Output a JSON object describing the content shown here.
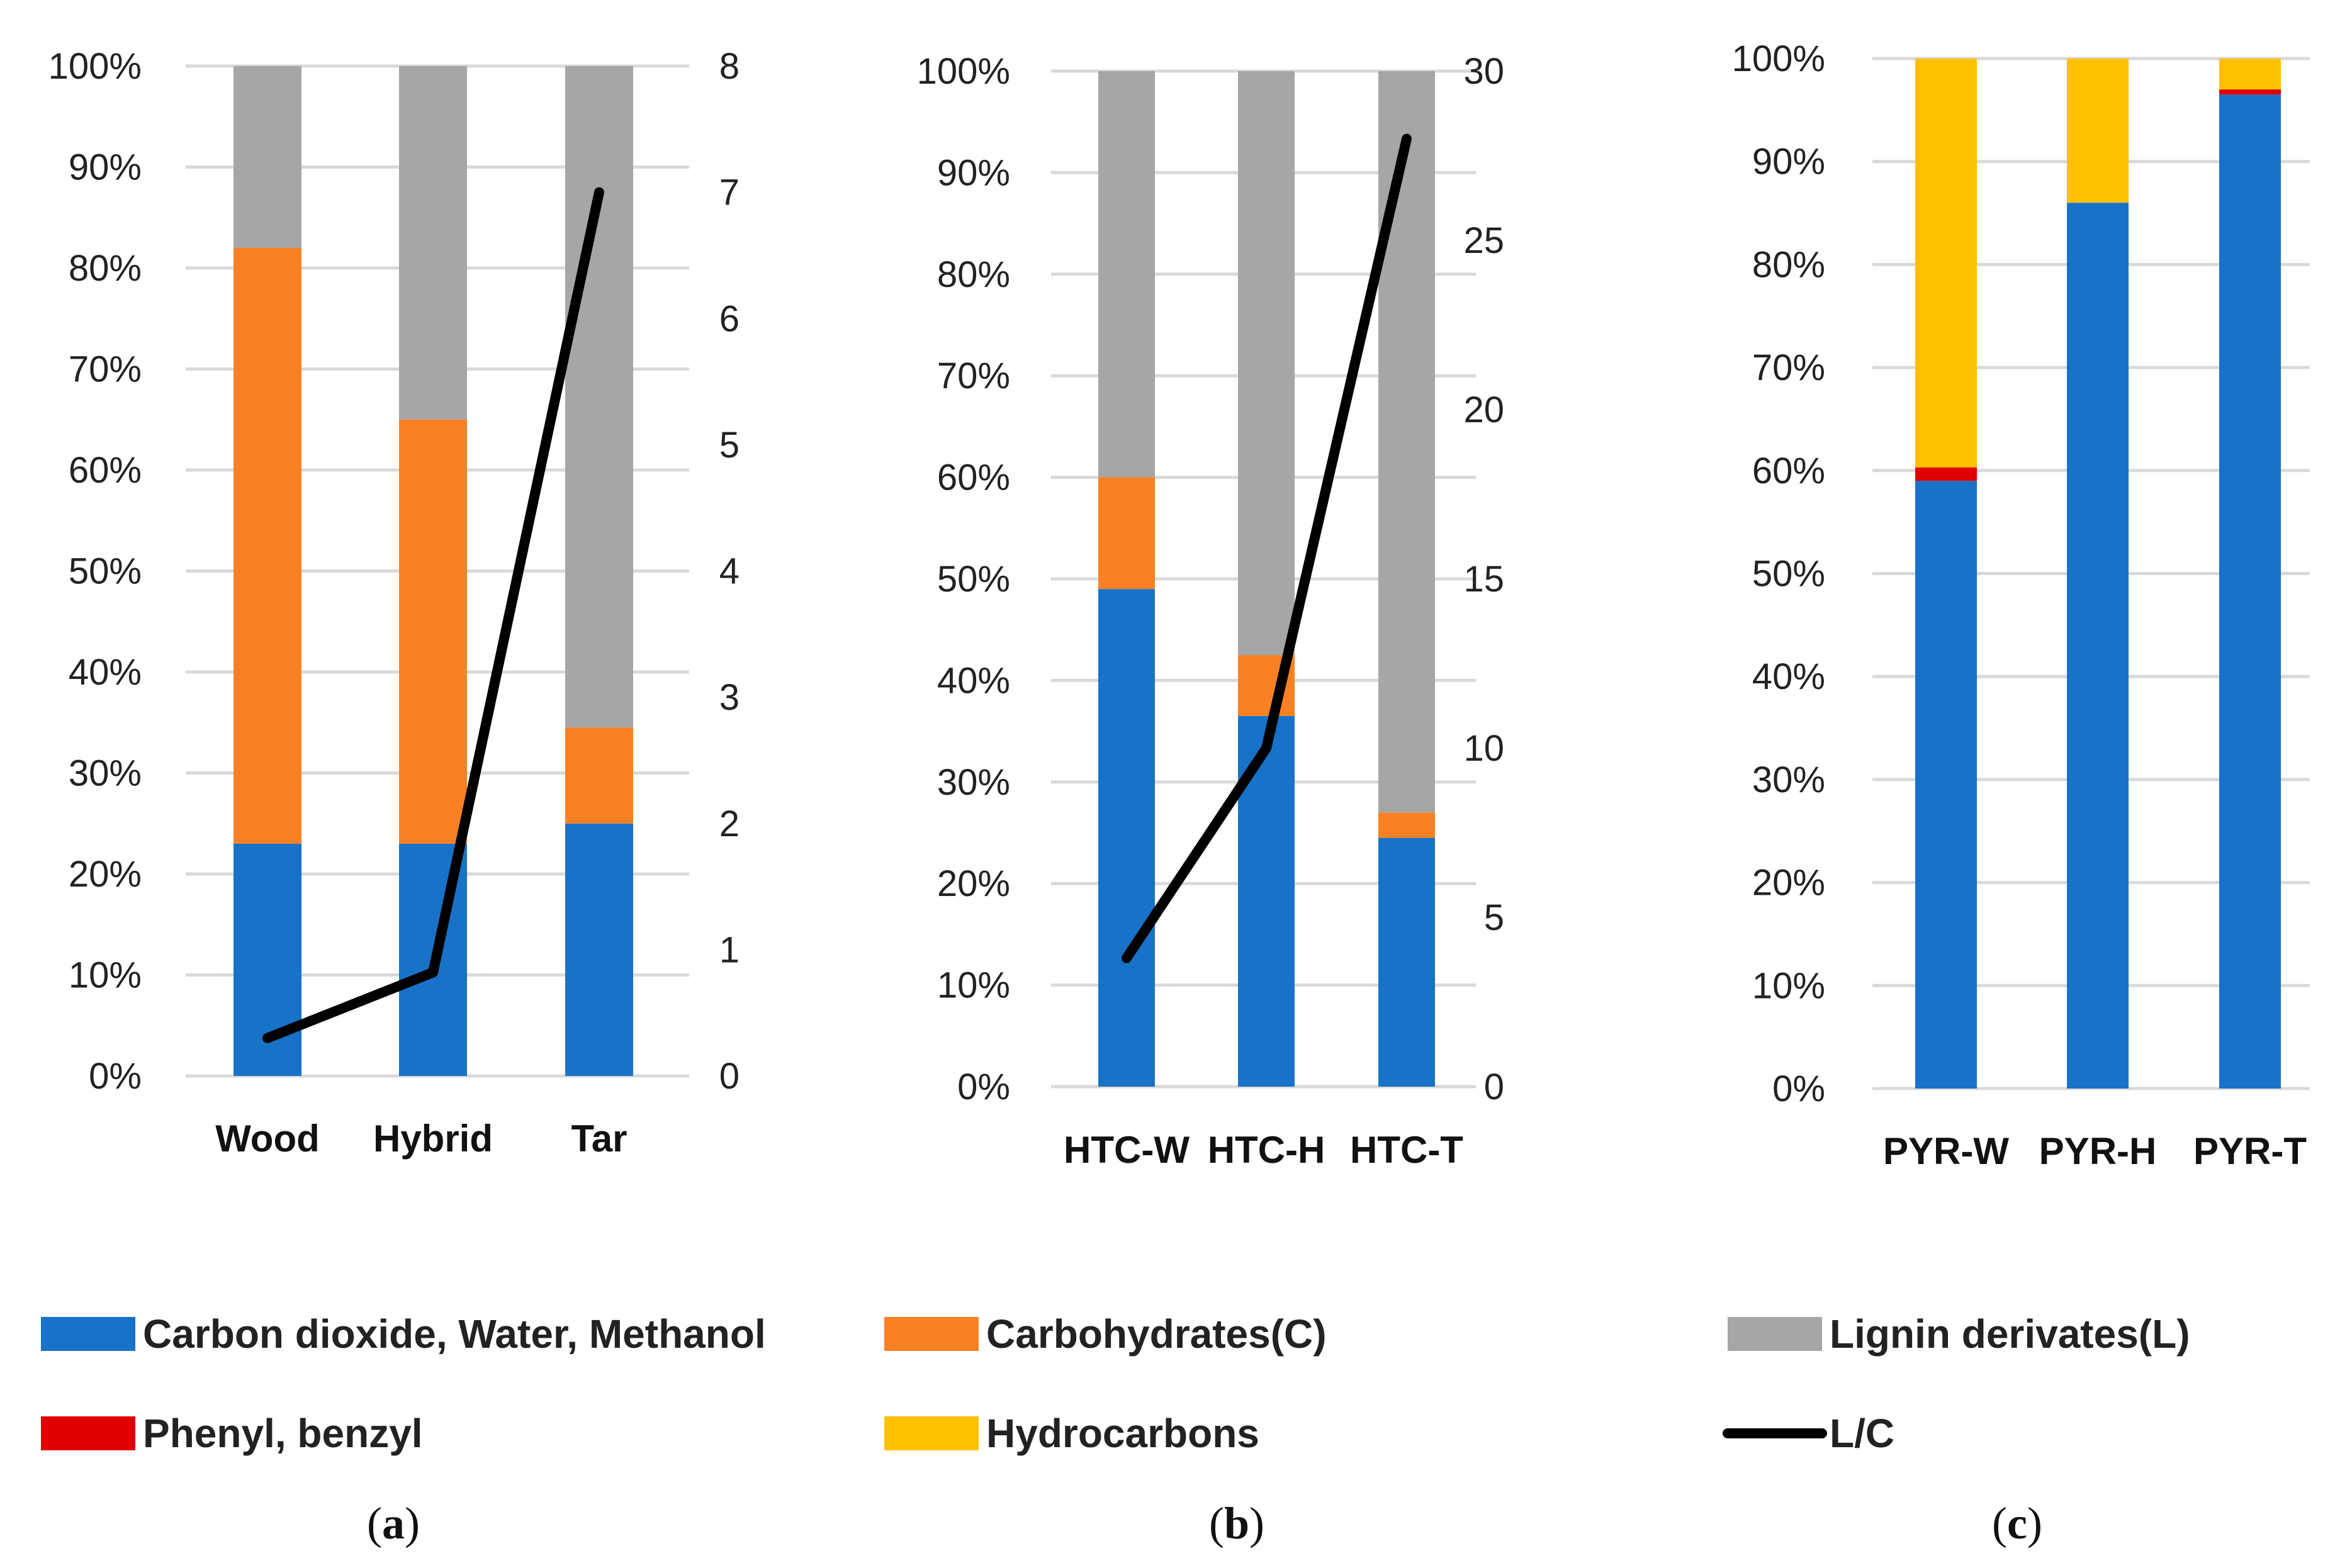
{
  "colors": {
    "carbon_dioxide": "#1872c8",
    "carbohydrates": "#f98124",
    "lignin": "#a6a6a6",
    "phenyl": "#e00000",
    "hydrocarbons": "#ffc000",
    "lc_line": "#000000",
    "grid": "#d9d9d9"
  },
  "legend": [
    {
      "key": "carbon_dioxide",
      "label": "Carbon dioxide, Water, Methanol",
      "kind": "box"
    },
    {
      "key": "carbohydrates",
      "label": "Carbohydrates(C)",
      "kind": "box"
    },
    {
      "key": "lignin",
      "label": "Lignin derivates(L)",
      "kind": "box"
    },
    {
      "key": "phenyl",
      "label": "Phenyl, benzyl",
      "kind": "box"
    },
    {
      "key": "hydrocarbons",
      "label": "Hydrocarbons",
      "kind": "box"
    },
    {
      "key": "lc_line",
      "label": "L/C",
      "kind": "line"
    }
  ],
  "chart_data": [
    {
      "panel": "a",
      "type": "bar",
      "stacked": true,
      "categories": [
        "Wood",
        "Hybrid",
        "Tar"
      ],
      "series": [
        {
          "name": "Carbon dioxide, Water, Methanol",
          "key": "carbon_dioxide",
          "values": [
            23,
            23,
            25
          ]
        },
        {
          "name": "Carbohydrates(C)",
          "key": "carbohydrates",
          "values": [
            59,
            42,
            9.5
          ]
        },
        {
          "name": "Lignin derivates(L)",
          "key": "lignin",
          "values": [
            18,
            35,
            65.5
          ]
        }
      ],
      "line": {
        "name": "L/C",
        "key": "lc_line",
        "values": [
          0.3,
          0.82,
          7.0
        ]
      },
      "ylim": [
        0,
        100
      ],
      "yticks": [
        "0%",
        "10%",
        "20%",
        "30%",
        "40%",
        "50%",
        "60%",
        "70%",
        "80%",
        "90%",
        "100%"
      ],
      "y2lim": [
        0,
        8
      ],
      "y2ticks": [
        "0",
        "1",
        "2",
        "3",
        "4",
        "5",
        "6",
        "7",
        "8"
      ]
    },
    {
      "panel": "b",
      "type": "bar",
      "stacked": true,
      "categories": [
        "HTC-W",
        "HTC-H",
        "HTC-T"
      ],
      "series": [
        {
          "name": "Carbon dioxide, Water, Methanol",
          "key": "carbon_dioxide",
          "values": [
            49,
            36.5,
            24.5
          ]
        },
        {
          "name": "Carbohydrates(C)",
          "key": "carbohydrates",
          "values": [
            11,
            6,
            2.5
          ]
        },
        {
          "name": "Lignin derivates(L)",
          "key": "lignin",
          "values": [
            40,
            57.5,
            73
          ]
        }
      ],
      "line": {
        "name": "L/C",
        "key": "lc_line",
        "values": [
          3.8,
          10,
          28
        ]
      },
      "ylim": [
        0,
        100
      ],
      "yticks": [
        "0%",
        "10%",
        "20%",
        "30%",
        "40%",
        "50%",
        "60%",
        "70%",
        "80%",
        "90%",
        "100%"
      ],
      "y2lim": [
        0,
        30
      ],
      "y2ticks": [
        "0",
        "5",
        "10",
        "15",
        "20",
        "25",
        "30"
      ]
    },
    {
      "panel": "c",
      "type": "bar",
      "stacked": true,
      "categories": [
        "PYR-W",
        "PYR-H",
        "PYR-T"
      ],
      "series": [
        {
          "name": "Carbon dioxide, Water, Methanol",
          "key": "carbon_dioxide",
          "values": [
            59,
            86,
            96.5
          ]
        },
        {
          "name": "Phenyl, benzyl",
          "key": "phenyl",
          "values": [
            1.3,
            0,
            0.5
          ]
        },
        {
          "name": "Hydrocarbons",
          "key": "hydrocarbons",
          "values": [
            39.7,
            14,
            3
          ]
        }
      ],
      "ylim": [
        0,
        100
      ],
      "yticks": [
        "0%",
        "10%",
        "20%",
        "30%",
        "40%",
        "50%",
        "60%",
        "70%",
        "80%",
        "90%",
        "100%"
      ]
    }
  ],
  "panel_labels": [
    {
      "open": "(",
      "letter": "a",
      "close": ")"
    },
    {
      "open": "(",
      "letter": "b",
      "close": ")"
    },
    {
      "open": "(",
      "letter": "c",
      "close": ")"
    }
  ]
}
